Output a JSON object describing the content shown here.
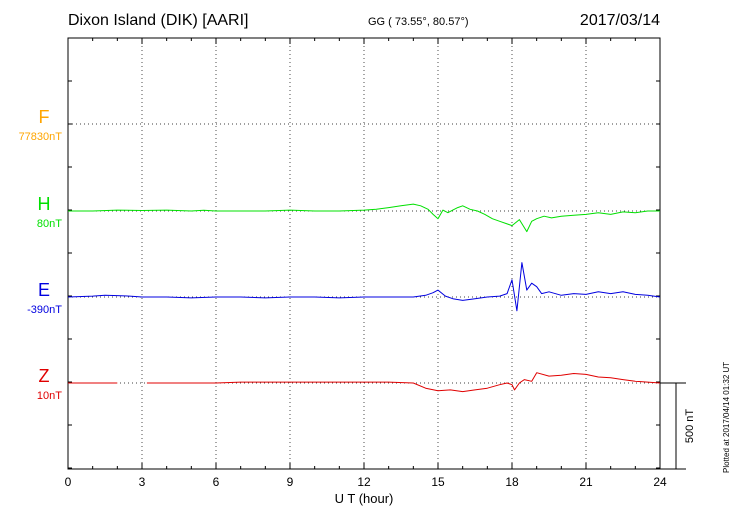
{
  "header": {
    "title": "Dixon Island (DIK)  [AARI]",
    "coords": "GG ( 73.55°,  80.57°)",
    "date": "2017/03/14"
  },
  "plotted_note": "Plotted at 2017/04/14 01:32 UT",
  "chart_data": {
    "type": "line",
    "xlabel": "U T (hour)",
    "xlim": [
      0,
      24
    ],
    "xticks": [
      0,
      3,
      6,
      9,
      12,
      15,
      18,
      21,
      24
    ],
    "scale_label": "500 nT",
    "scale_nT": 500,
    "grid": true,
    "series": [
      {
        "name": "F",
        "offset_label": "77830nT",
        "color": "#ffa500",
        "t": [],
        "v": []
      },
      {
        "name": "H",
        "offset_label": "80nT",
        "color": "#00e000",
        "t": [
          0,
          1,
          2,
          3,
          4,
          5,
          5.5,
          6,
          7,
          8,
          9,
          10,
          11,
          12,
          12.5,
          13,
          13.5,
          14,
          14.3,
          14.6,
          14.8,
          15,
          15.2,
          15.4,
          15.6,
          15.8,
          16,
          16.3,
          16.6,
          16.9,
          17.2,
          17.5,
          17.8,
          18,
          18.3,
          18.6,
          18.8,
          19,
          19.3,
          19.6,
          20,
          20.5,
          21,
          21.5,
          22,
          22.5,
          23,
          23.5,
          24
        ],
        "v": [
          0,
          0,
          5,
          3,
          5,
          0,
          4,
          0,
          0,
          0,
          5,
          0,
          0,
          5,
          10,
          20,
          30,
          40,
          30,
          10,
          -20,
          -45,
          5,
          -10,
          5,
          20,
          30,
          10,
          0,
          -20,
          -45,
          -60,
          -75,
          -85,
          -50,
          -120,
          -60,
          -45,
          -30,
          -40,
          -30,
          -25,
          -20,
          -10,
          -20,
          -5,
          -10,
          0,
          0
        ]
      },
      {
        "name": "E",
        "offset_label": "-390nT",
        "color": "#0000e0",
        "t": [
          0,
          1,
          1.5,
          2,
          2.5,
          3,
          4,
          5,
          6,
          7,
          8,
          9,
          10,
          11,
          12,
          13,
          14,
          14.5,
          14.8,
          15,
          15.3,
          15.6,
          16,
          16.5,
          17,
          17.5,
          17.8,
          18,
          18.2,
          18.4,
          18.6,
          18.8,
          19,
          19.2,
          19.5,
          20,
          20.5,
          21,
          21.5,
          22,
          22.5,
          23,
          23.5,
          24
        ],
        "v": [
          0,
          5,
          10,
          8,
          5,
          0,
          0,
          -5,
          0,
          0,
          -5,
          0,
          0,
          -5,
          0,
          0,
          0,
          10,
          25,
          40,
          5,
          -10,
          -20,
          -10,
          0,
          5,
          20,
          100,
          -80,
          200,
          40,
          80,
          60,
          20,
          30,
          10,
          20,
          15,
          30,
          20,
          30,
          15,
          10,
          0
        ]
      },
      {
        "name": "Z",
        "offset_label": "10nT",
        "color": "#e00000",
        "t": [
          0,
          1,
          2,
          2.2,
          2.9,
          3.2,
          4,
          5,
          6,
          7,
          8,
          9,
          10,
          11,
          12,
          13,
          14,
          14.5,
          15,
          15.5,
          16,
          16.5,
          17,
          17.5,
          17.8,
          18,
          18.1,
          18.3,
          18.5,
          18.8,
          19,
          19.5,
          20,
          20.5,
          21,
          21.5,
          22,
          22.5,
          23,
          23.5,
          24
        ],
        "v": [
          0,
          0,
          0,
          null,
          null,
          0,
          0,
          0,
          0,
          5,
          5,
          5,
          5,
          5,
          5,
          5,
          0,
          -30,
          -45,
          -40,
          -50,
          -40,
          -30,
          -10,
          0,
          -10,
          -40,
          0,
          20,
          10,
          60,
          40,
          45,
          55,
          50,
          35,
          30,
          20,
          10,
          5,
          0
        ]
      }
    ]
  }
}
